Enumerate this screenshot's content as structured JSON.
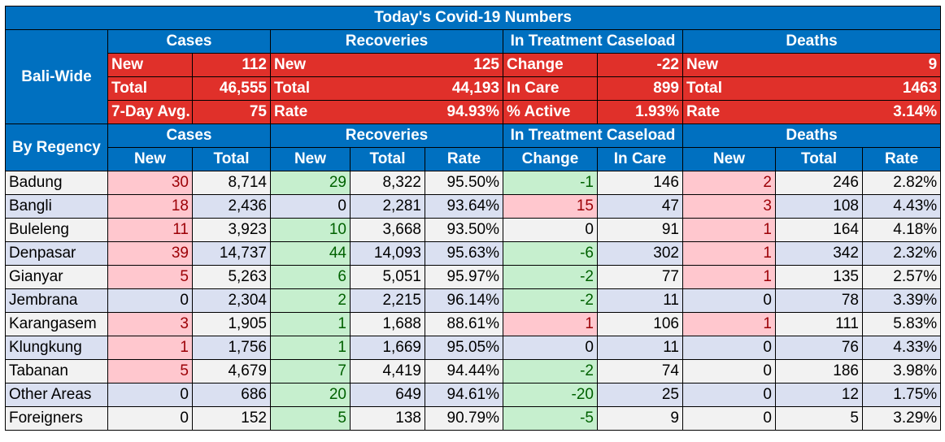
{
  "title": "Today's Covid-19 Numbers",
  "groups": {
    "cases": "Cases",
    "recoveries": "Recoveries",
    "treatment": "In Treatment Caseload",
    "deaths": "Deaths"
  },
  "bali_wide": {
    "label": "Bali-Wide",
    "cases": [
      {
        "label": "New",
        "value": "112"
      },
      {
        "label": "Total",
        "value": "46,555"
      },
      {
        "label": "7-Day Avg.",
        "value": "75"
      }
    ],
    "recoveries": [
      {
        "label": "New",
        "value": "125"
      },
      {
        "label": "Total",
        "value": "44,193"
      },
      {
        "label": "Rate",
        "value": "94.93%"
      }
    ],
    "treatment": [
      {
        "label": "Change",
        "value": "-22"
      },
      {
        "label": "In Care",
        "value": "899"
      },
      {
        "label": "% Active",
        "value": "1.93%"
      }
    ],
    "deaths": [
      {
        "label": "New",
        "value": "9"
      },
      {
        "label": "Total",
        "value": "1463"
      },
      {
        "label": "Rate",
        "value": "3.14%"
      }
    ]
  },
  "by_regency": {
    "label": "By Regency",
    "columns": [
      "New",
      "Total",
      "New",
      "Total",
      "Rate",
      "Change",
      "In Care",
      "New",
      "Total",
      "Rate"
    ],
    "rows": [
      {
        "name": "Badung",
        "cases_new": "30",
        "cases_total": "8,714",
        "rec_new": "29",
        "rec_total": "8,322",
        "rec_rate": "95.50%",
        "change": "-1",
        "in_care": "146",
        "deaths_new": "2",
        "deaths_total": "246",
        "deaths_rate": "2.82%"
      },
      {
        "name": "Bangli",
        "cases_new": "18",
        "cases_total": "2,436",
        "rec_new": "0",
        "rec_total": "2,281",
        "rec_rate": "93.64%",
        "change": "15",
        "in_care": "47",
        "deaths_new": "3",
        "deaths_total": "108",
        "deaths_rate": "4.43%"
      },
      {
        "name": "Buleleng",
        "cases_new": "11",
        "cases_total": "3,923",
        "rec_new": "10",
        "rec_total": "3,668",
        "rec_rate": "93.50%",
        "change": "0",
        "in_care": "91",
        "deaths_new": "1",
        "deaths_total": "164",
        "deaths_rate": "4.18%"
      },
      {
        "name": "Denpasar",
        "cases_new": "39",
        "cases_total": "14,737",
        "rec_new": "44",
        "rec_total": "14,093",
        "rec_rate": "95.63%",
        "change": "-6",
        "in_care": "302",
        "deaths_new": "1",
        "deaths_total": "342",
        "deaths_rate": "2.32%"
      },
      {
        "name": "Gianyar",
        "cases_new": "5",
        "cases_total": "5,263",
        "rec_new": "6",
        "rec_total": "5,051",
        "rec_rate": "95.97%",
        "change": "-2",
        "in_care": "77",
        "deaths_new": "1",
        "deaths_total": "135",
        "deaths_rate": "2.57%"
      },
      {
        "name": "Jembrana",
        "cases_new": "0",
        "cases_total": "2,304",
        "rec_new": "2",
        "rec_total": "2,215",
        "rec_rate": "96.14%",
        "change": "-2",
        "in_care": "11",
        "deaths_new": "0",
        "deaths_total": "78",
        "deaths_rate": "3.39%"
      },
      {
        "name": "Karangasem",
        "cases_new": "3",
        "cases_total": "1,905",
        "rec_new": "1",
        "rec_total": "1,688",
        "rec_rate": "88.61%",
        "change": "1",
        "in_care": "106",
        "deaths_new": "1",
        "deaths_total": "111",
        "deaths_rate": "5.83%"
      },
      {
        "name": "Klungkung",
        "cases_new": "1",
        "cases_total": "1,756",
        "rec_new": "1",
        "rec_total": "1,669",
        "rec_rate": "95.05%",
        "change": "0",
        "in_care": "11",
        "deaths_new": "0",
        "deaths_total": "76",
        "deaths_rate": "4.33%"
      },
      {
        "name": "Tabanan",
        "cases_new": "5",
        "cases_total": "4,679",
        "rec_new": "7",
        "rec_total": "4,419",
        "rec_rate": "94.44%",
        "change": "-2",
        "in_care": "74",
        "deaths_new": "0",
        "deaths_total": "186",
        "deaths_rate": "3.98%"
      },
      {
        "name": "Other Areas",
        "cases_new": "0",
        "cases_total": "686",
        "rec_new": "20",
        "rec_total": "649",
        "rec_rate": "94.61%",
        "change": "-20",
        "in_care": "25",
        "deaths_new": "0",
        "deaths_total": "12",
        "deaths_rate": "1.75%"
      },
      {
        "name": "Foreigners",
        "cases_new": "0",
        "cases_total": "152",
        "rec_new": "5",
        "rec_total": "138",
        "rec_rate": "90.79%",
        "change": "-5",
        "in_care": "9",
        "deaths_new": "0",
        "deaths_total": "5",
        "deaths_rate": "3.29%"
      }
    ]
  },
  "colors": {
    "header_blue": "#0070c0",
    "summary_red": "#e0302a",
    "increase_pink": "#ffc7ce",
    "increase_text": "#9c0006",
    "good_green": "#c6efce",
    "good_text": "#006100",
    "row_light": "#f2f2f2",
    "row_blue": "#dae0f1"
  }
}
